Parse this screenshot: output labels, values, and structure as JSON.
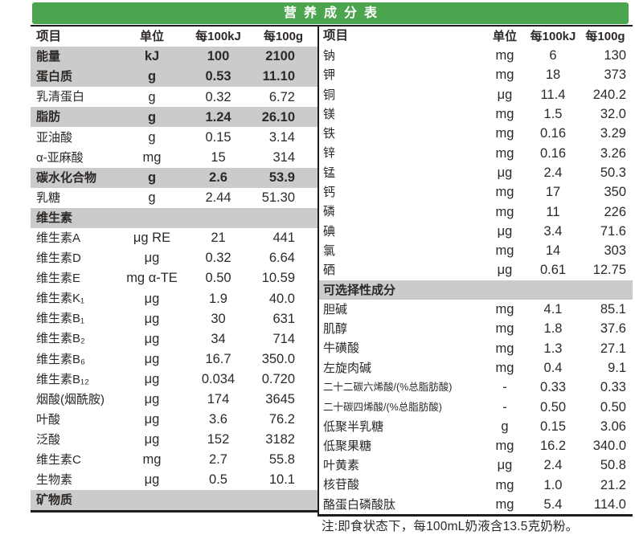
{
  "title": "营养成分表",
  "columns": {
    "item": "项目",
    "unit": "单位",
    "per100kj": "每100kJ",
    "per100g": "每100g"
  },
  "left_table": {
    "rows": [
      {
        "name": "能量",
        "unit": "kJ",
        "per100kj": "100",
        "per100g": "2100",
        "bold": true,
        "shaded": true
      },
      {
        "name": "蛋白质",
        "unit": "g",
        "per100kj": "0.53",
        "per100g": "11.10",
        "bold": true,
        "shaded": true
      },
      {
        "name": "乳清蛋白",
        "unit": "g",
        "per100kj": "0.32",
        "per100g": "6.72"
      },
      {
        "name": "脂肪",
        "unit": "g",
        "per100kj": "1.24",
        "per100g": "26.10",
        "bold": true,
        "shaded": true
      },
      {
        "name": "亚油酸",
        "unit": "g",
        "per100kj": "0.15",
        "per100g": "3.14"
      },
      {
        "name": "α-亚麻酸",
        "unit": "mg",
        "per100kj": "15",
        "per100g": "314"
      },
      {
        "name": "碳水化合物",
        "unit": "g",
        "per100kj": "2.6",
        "per100g": "53.9",
        "bold": true,
        "shaded": true
      },
      {
        "name": "乳糖",
        "unit": "g",
        "per100kj": "2.44",
        "per100g": "51.30"
      },
      {
        "name": "维生素",
        "section": true
      },
      {
        "name": "维生素A",
        "unit": "μg RE",
        "per100kj": "21",
        "per100g": "441"
      },
      {
        "name": "维生素D",
        "unit": "μg",
        "per100kj": "0.32",
        "per100g": "6.64"
      },
      {
        "name": "维生素E",
        "unit": "mg α-TE",
        "per100kj": "0.50",
        "per100g": "10.59"
      },
      {
        "name": "维生素K₁",
        "unit": "μg",
        "per100kj": "1.9",
        "per100g": "40.0"
      },
      {
        "name": "维生素B₁",
        "unit": "μg",
        "per100kj": "30",
        "per100g": "631"
      },
      {
        "name": "维生素B₂",
        "unit": "μg",
        "per100kj": "34",
        "per100g": "714"
      },
      {
        "name": "维生素B₆",
        "unit": "μg",
        "per100kj": "16.7",
        "per100g": "350.0"
      },
      {
        "name": "维生素B₁₂",
        "unit": "μg",
        "per100kj": "0.034",
        "per100g": "0.720"
      },
      {
        "name": "烟酸(烟酰胺)",
        "unit": "μg",
        "per100kj": "174",
        "per100g": "3645"
      },
      {
        "name": "叶酸",
        "unit": "μg",
        "per100kj": "3.6",
        "per100g": "76.2"
      },
      {
        "name": "泛酸",
        "unit": "μg",
        "per100kj": "152",
        "per100g": "3182"
      },
      {
        "name": "维生素C",
        "unit": "mg",
        "per100kj": "2.7",
        "per100g": "55.8"
      },
      {
        "name": "生物素",
        "unit": "μg",
        "per100kj": "0.5",
        "per100g": "10.1"
      },
      {
        "name": "矿物质",
        "section": true
      }
    ]
  },
  "right_table": {
    "rows": [
      {
        "name": "钠",
        "unit": "mg",
        "per100kj": "6",
        "per100g": "130"
      },
      {
        "name": "钾",
        "unit": "mg",
        "per100kj": "18",
        "per100g": "373"
      },
      {
        "name": "铜",
        "unit": "μg",
        "per100kj": "11.4",
        "per100g": "240.2"
      },
      {
        "name": "镁",
        "unit": "mg",
        "per100kj": "1.5",
        "per100g": "32.0"
      },
      {
        "name": "铁",
        "unit": "mg",
        "per100kj": "0.16",
        "per100g": "3.29"
      },
      {
        "name": "锌",
        "unit": "mg",
        "per100kj": "0.16",
        "per100g": "3.26"
      },
      {
        "name": "锰",
        "unit": "μg",
        "per100kj": "2.4",
        "per100g": "50.3"
      },
      {
        "name": "钙",
        "unit": "mg",
        "per100kj": "17",
        "per100g": "350"
      },
      {
        "name": "磷",
        "unit": "mg",
        "per100kj": "11",
        "per100g": "226"
      },
      {
        "name": "碘",
        "unit": "μg",
        "per100kj": "3.4",
        "per100g": "71.6"
      },
      {
        "name": "氯",
        "unit": "mg",
        "per100kj": "14",
        "per100g": "303"
      },
      {
        "name": "硒",
        "unit": "μg",
        "per100kj": "0.61",
        "per100g": "12.75"
      },
      {
        "name": "可选择性成分",
        "section": true
      },
      {
        "name": "胆碱",
        "unit": "mg",
        "per100kj": "4.1",
        "per100g": "85.1"
      },
      {
        "name": "肌醇",
        "unit": "mg",
        "per100kj": "1.8",
        "per100g": "37.6"
      },
      {
        "name": "牛磺酸",
        "unit": "mg",
        "per100kj": "1.3",
        "per100g": "27.1"
      },
      {
        "name": "左旋肉碱",
        "unit": "mg",
        "per100kj": "0.4",
        "per100g": "9.1"
      },
      {
        "name": "二十二碳六烯酸/(%总脂肪酸)",
        "unit": "-",
        "per100kj": "0.33",
        "per100g": "0.33"
      },
      {
        "name": "二十碳四烯酸/(%总脂肪酸)",
        "unit": "-",
        "per100kj": "0.50",
        "per100g": "0.50"
      },
      {
        "name": "低聚半乳糖",
        "unit": "g",
        "per100kj": "0.15",
        "per100g": "3.06"
      },
      {
        "name": "低聚果糖",
        "unit": "mg",
        "per100kj": "16.2",
        "per100g": "340.0"
      },
      {
        "name": "叶黄素",
        "unit": "μg",
        "per100kj": "2.4",
        "per100g": "50.8"
      },
      {
        "name": "核苷酸",
        "unit": "mg",
        "per100kj": "1.0",
        "per100g": "21.2"
      },
      {
        "name": "酪蛋白磷酸肽",
        "unit": "mg",
        "per100kj": "5.4",
        "per100g": "114.0"
      }
    ]
  },
  "note": "注:即食状态下，每100mL奶液含13.5克奶粉。",
  "colors": {
    "header_green": "#4ba54e",
    "row_shade": "#cbcbcb",
    "rule": "#1d1c1a",
    "text": "#2d2927"
  }
}
